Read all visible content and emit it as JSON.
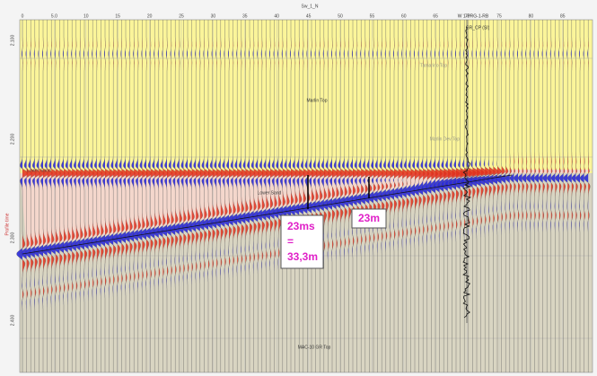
{
  "header": {
    "title": "Sw_1_N"
  },
  "x_axis": {
    "ticks": [
      "0",
      "5.0",
      "10",
      "15",
      "20",
      "25",
      "30",
      "35",
      "40",
      "45",
      "50",
      "55",
      "60",
      "65",
      "70",
      "75",
      "80",
      "85"
    ]
  },
  "y_axis": {
    "label": "Profile time",
    "ticks": [
      "2.100",
      "2.200",
      "2.300",
      "2.400"
    ]
  },
  "horizons": [
    {
      "label": "Marlin Top"
    },
    {
      "label": "Lower Sand"
    },
    {
      "label": "MAC-10 GR Top"
    },
    {
      "label": "Tamarino Top"
    },
    {
      "label": "Marlin Dev Top"
    },
    {
      "label": "Lower Sand"
    }
  ],
  "well": {
    "name": "W 1-PRG-1-RB",
    "log": "GR_CP (SI)"
  },
  "annotations": [
    {
      "lines": [
        "23ms",
        "=",
        "33,3m"
      ]
    },
    {
      "lines": [
        "23m"
      ]
    }
  ]
}
